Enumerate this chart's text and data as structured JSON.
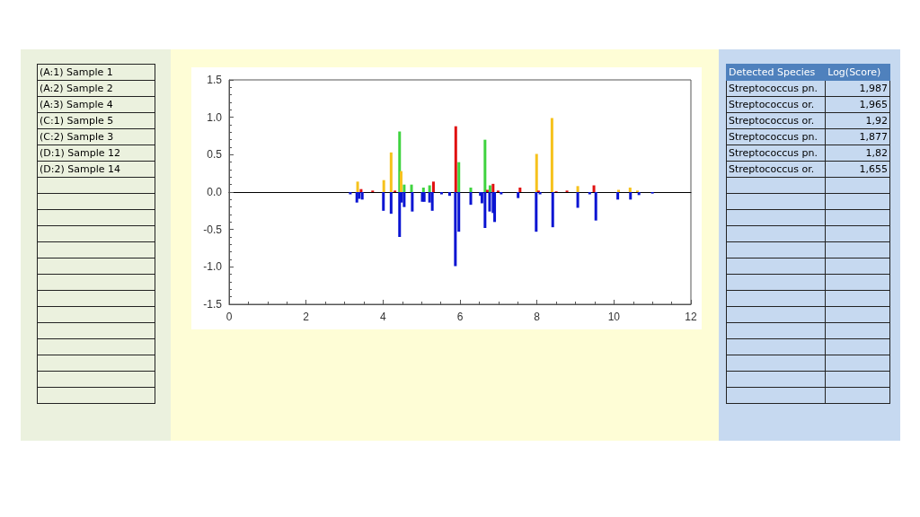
{
  "chart_data": {
    "type": "bar",
    "xlim": [
      0,
      12
    ],
    "xticks": [
      0,
      2,
      4,
      6,
      8,
      10,
      12
    ],
    "ylim": [
      -1.5,
      1.5
    ],
    "yticks": [
      {
        "value": -1.5,
        "label": "-1.5"
      },
      {
        "value": -1,
        "label": "-1.0"
      },
      {
        "value": -0.5,
        "label": "-0.5"
      },
      {
        "value": 0,
        "label": "0.0"
      },
      {
        "value": 0.5,
        "label": "0.5"
      },
      {
        "value": 1,
        "label": "1.0"
      },
      {
        "value": 1.5,
        "label": "1.5"
      }
    ],
    "series": [
      {
        "color": "#3fd33f",
        "x": [
          4.43,
          4.55,
          4.74,
          5.05,
          5.21,
          5.97,
          6.28,
          6.65,
          6.78
        ],
        "values": [
          0.81,
          0.1,
          0.1,
          0.06,
          0.09,
          0.4,
          0.06,
          0.7,
          0.09
        ]
      },
      {
        "color": "#f6c21c",
        "x": [
          3.34,
          4.02,
          4.21,
          4.47,
          7.99,
          8.39,
          9.06,
          10.12,
          10.42,
          10.61
        ],
        "values": [
          0.14,
          0.16,
          0.53,
          0.28,
          0.51,
          0.99,
          0.08,
          0.03,
          0.06,
          0.02
        ]
      },
      {
        "color": "#e01010",
        "x": [
          3.43,
          3.73,
          4.31,
          5.31,
          5.89,
          6.71,
          6.86,
          6.99,
          7.56,
          8.04,
          8.5,
          8.78,
          9.48
        ],
        "values": [
          0.04,
          0.02,
          0.02,
          0.14,
          0.88,
          0.03,
          0.11,
          0.02,
          0.06,
          0.02,
          0.01,
          0.02,
          0.09
        ]
      },
      {
        "color": "#0a14d2",
        "x": [
          3.15,
          3.32,
          3.38,
          3.46,
          4.01,
          4.21,
          4.43,
          4.48,
          4.55,
          4.76,
          5.02,
          5.07,
          5.21,
          5.28,
          5.52,
          5.73,
          5.88,
          5.97,
          6.28,
          6.53,
          6.57,
          6.65,
          6.77,
          6.86,
          6.9,
          7.07,
          7.51,
          7.98,
          8.08,
          8.41,
          9.06,
          9.37,
          9.53,
          10.1,
          10.43,
          10.65,
          11.0
        ],
        "values": [
          -0.03,
          -0.14,
          -0.09,
          -0.1,
          -0.25,
          -0.29,
          -0.6,
          -0.14,
          -0.2,
          -0.26,
          -0.13,
          -0.13,
          -0.14,
          -0.25,
          -0.03,
          -0.05,
          -0.99,
          -0.53,
          -0.17,
          -0.05,
          -0.15,
          -0.48,
          -0.26,
          -0.28,
          -0.4,
          -0.03,
          -0.08,
          -0.53,
          -0.03,
          -0.47,
          -0.21,
          -0.03,
          -0.38,
          -0.1,
          -0.1,
          -0.04,
          -0.02
        ]
      }
    ],
    "annotations": [
      "(A:1) Sample 1",
      "(A:2) Sample 2",
      "(A:3) Sample 4",
      "(C:1) Sample 5",
      "(C:2) Sample 3",
      "(D:1) Sample 12",
      "(D:2) Sample 14",
      "Detected Species",
      "Log(Score)",
      "Streptococcus pn.",
      "1,987",
      "Streptococcus or.",
      "1,965",
      "Streptococcus or.",
      "1,92",
      "Streptococcus pn.",
      "1,877",
      "Streptococcus pn.",
      "1,82",
      "Streptococcus or.",
      "1,655"
    ]
  }
}
